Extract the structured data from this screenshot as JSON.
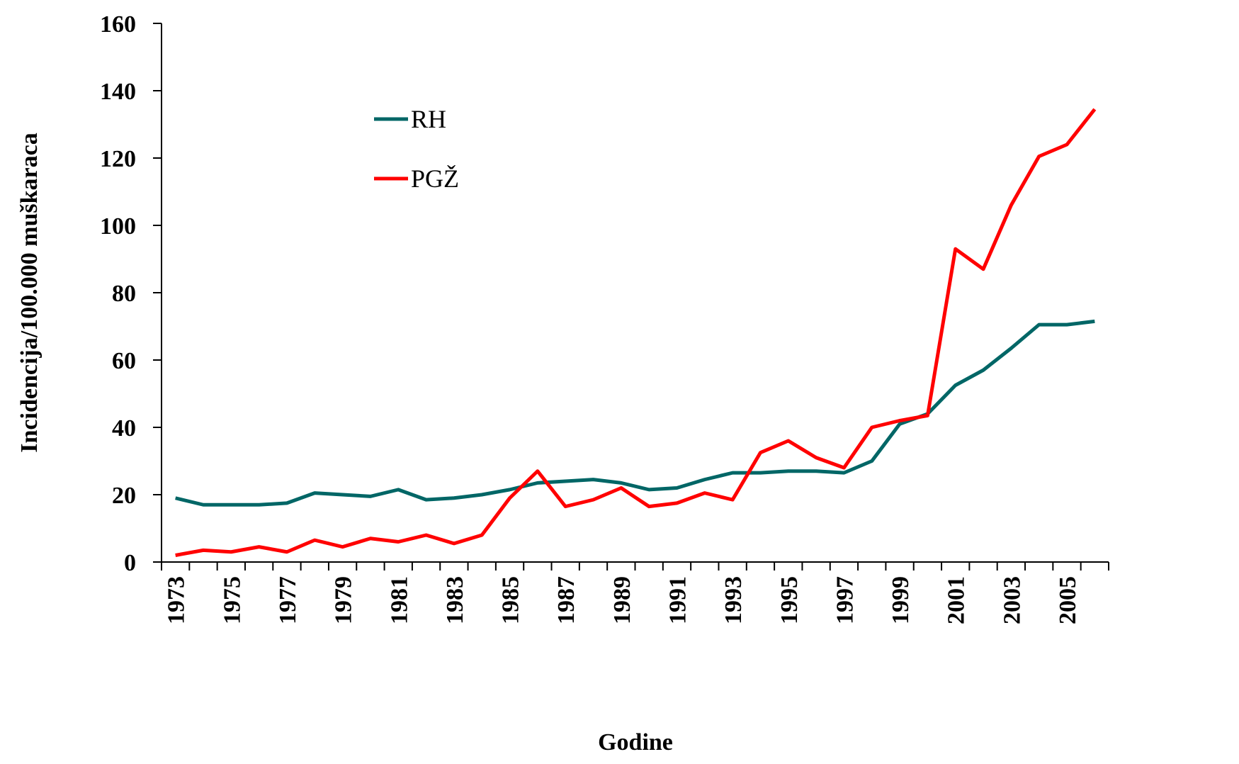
{
  "chart_data": {
    "type": "line",
    "x_label": "Godine",
    "y_label": "Incidencija/100.000 muškaraca",
    "categories": [
      "1973",
      null,
      "1975",
      null,
      "1977",
      null,
      "1979",
      null,
      "1981",
      null,
      "1983",
      null,
      "1985",
      null,
      "1987",
      null,
      "1989",
      null,
      "1991",
      null,
      "1993",
      null,
      "1995",
      null,
      "1997",
      null,
      "1999",
      null,
      "2001",
      null,
      "2003",
      null,
      "2005",
      null
    ],
    "series": [
      {
        "name": "RH",
        "color": "#006666",
        "values": [
          19,
          17,
          17,
          17,
          17.5,
          20.5,
          20,
          19.5,
          21.5,
          18.5,
          19,
          20,
          21.5,
          23.5,
          24,
          24.5,
          23.5,
          21.5,
          22,
          24.5,
          26.5,
          26.5,
          27,
          27,
          26.5,
          30,
          41,
          44,
          52.5,
          57,
          63.5,
          70.5,
          70.5,
          71.5
        ]
      },
      {
        "name": "PGŽ",
        "color": "#ff0000",
        "values": [
          2,
          3.5,
          3,
          4.5,
          3,
          6.5,
          4.5,
          7,
          6,
          8,
          5.5,
          8,
          19,
          27,
          16.5,
          18.5,
          22,
          16.5,
          17.5,
          20.5,
          18.5,
          32.5,
          36,
          31,
          28,
          40,
          42,
          43.5,
          93,
          87,
          106,
          120.5,
          124,
          134.5
        ]
      }
    ],
    "ylim": [
      0,
      160
    ],
    "yticks": [
      0,
      20,
      40,
      60,
      80,
      100,
      120,
      140,
      160
    ],
    "grid": false,
    "legend": "upper left"
  }
}
